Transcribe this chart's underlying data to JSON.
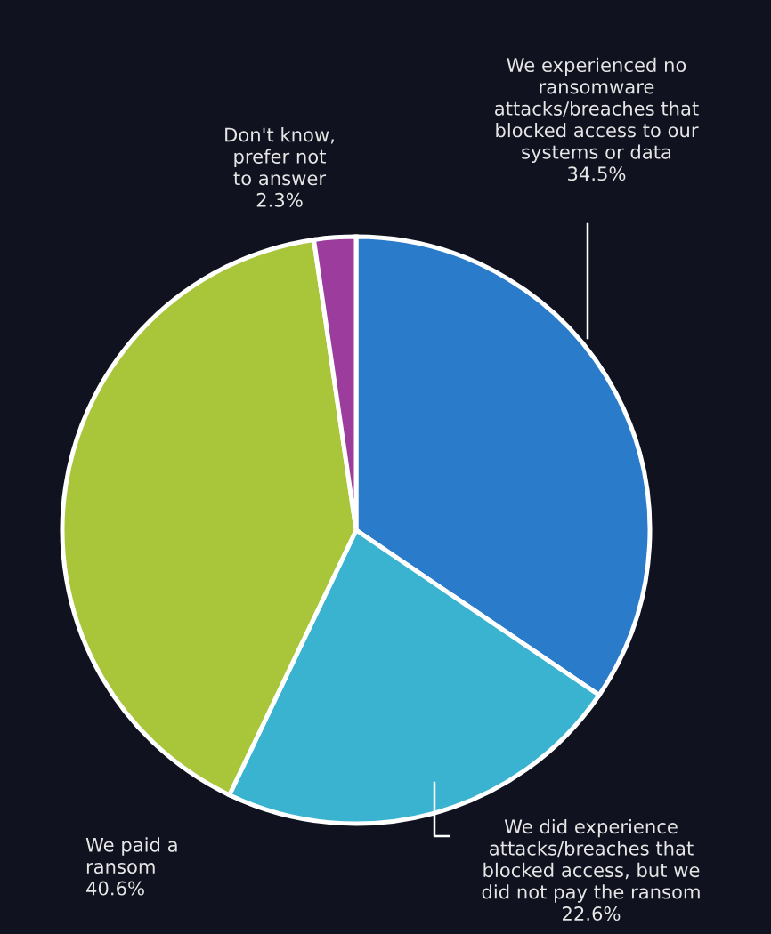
{
  "chart_data": {
    "type": "pie",
    "categories": [
      "We experienced no ransomware attacks/breaches that blocked access to our systems or data",
      "We did experience attacks/breaches that blocked access, but we did not pay the ransom",
      "We paid a ransom",
      "Don't know, prefer not to answer"
    ],
    "values": [
      34.5,
      22.6,
      40.6,
      2.3
    ],
    "value_labels": [
      "34.5%",
      "22.6%",
      "40.6%",
      "2.3%"
    ],
    "colors": [
      "#2b7bcb",
      "#3ab3d1",
      "#a9c63a",
      "#9c3c9c"
    ]
  }
}
